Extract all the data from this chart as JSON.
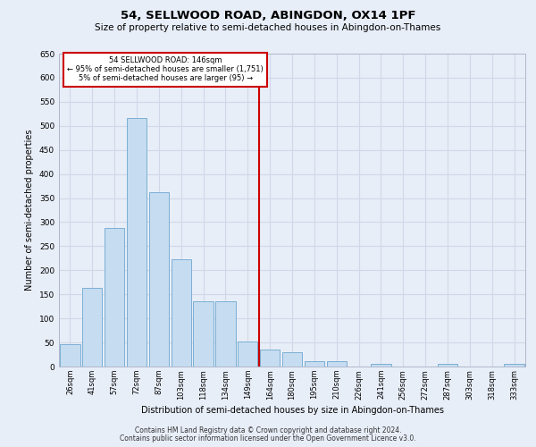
{
  "title": "54, SELLWOOD ROAD, ABINGDON, OX14 1PF",
  "subtitle": "Size of property relative to semi-detached houses in Abingdon-on-Thames",
  "xlabel": "Distribution of semi-detached houses by size in Abingdon-on-Thames",
  "ylabel": "Number of semi-detached properties",
  "footer1": "Contains HM Land Registry data © Crown copyright and database right 2024.",
  "footer2": "Contains public sector information licensed under the Open Government Licence v3.0.",
  "categories": [
    "26sqm",
    "41sqm",
    "57sqm",
    "72sqm",
    "87sqm",
    "103sqm",
    "118sqm",
    "134sqm",
    "149sqm",
    "164sqm",
    "180sqm",
    "195sqm",
    "210sqm",
    "226sqm",
    "241sqm",
    "256sqm",
    "272sqm",
    "287sqm",
    "303sqm",
    "318sqm",
    "333sqm"
  ],
  "values": [
    46,
    163,
    287,
    517,
    362,
    223,
    135,
    135,
    52,
    35,
    30,
    12,
    11,
    0,
    6,
    0,
    0,
    5,
    0,
    0,
    5
  ],
  "bar_color": "#c6dcf0",
  "bar_edge_color": "#7bafd4",
  "grid_color": "#d0d8e8",
  "bg_color": "#e8eef8",
  "annotation_text_line1": "54 SELLWOOD ROAD: 146sqm",
  "annotation_text_line2": "← 95% of semi-detached houses are smaller (1,751)",
  "annotation_text_line3": "5% of semi-detached houses are larger (95) →",
  "annotation_box_color": "white",
  "annotation_border_color": "#cc0000",
  "vline_color": "#cc0000",
  "vline_x_index": 8.5,
  "ylim": [
    0,
    650
  ],
  "yticks": [
    0,
    50,
    100,
    150,
    200,
    250,
    300,
    350,
    400,
    450,
    500,
    550,
    600,
    650
  ]
}
